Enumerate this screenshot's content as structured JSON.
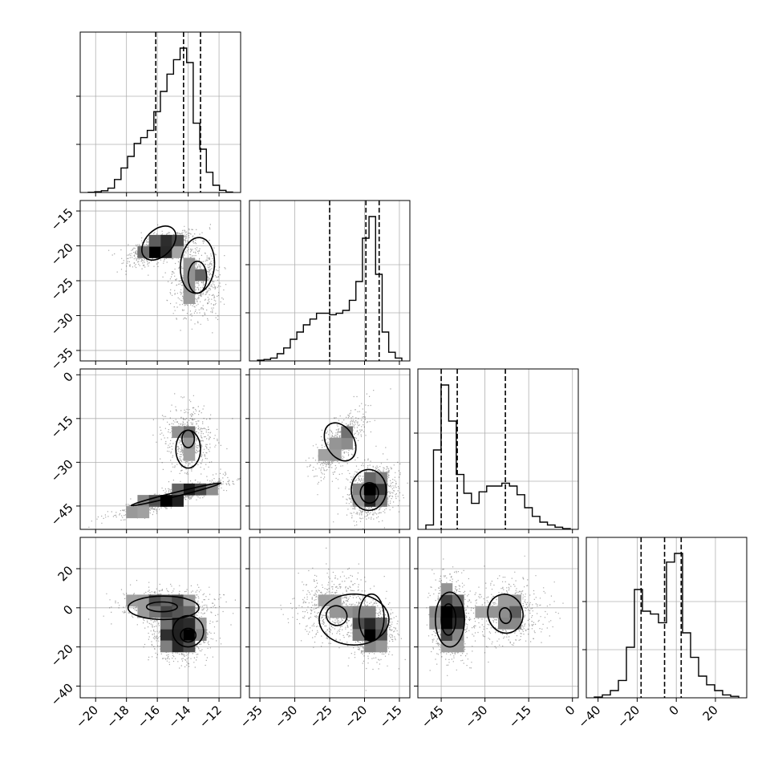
{
  "chart_data": {
    "type": "corner",
    "variables": [
      {
        "range": [
          -21,
          -10.6
        ],
        "ticks": [
          -20,
          -18,
          -16,
          -14,
          -12
        ],
        "tick_labels": [
          "−20",
          "−18",
          "−16",
          "−14",
          "−12"
        ]
      },
      {
        "range": [
          -36.5,
          -13.5
        ],
        "ticks": [
          -35,
          -30,
          -25,
          -20,
          -15
        ],
        "tick_labels": [
          "−35",
          "−30",
          "−25",
          "−20",
          "−15"
        ]
      },
      {
        "range": [
          -53,
          2
        ],
        "ticks": [
          -45,
          -30,
          -15,
          0
        ],
        "tick_labels": [
          "−45",
          "−30",
          "−15",
          "0"
        ]
      },
      {
        "range": [
          -46,
          36
        ],
        "ticks": [
          -40,
          -20,
          0,
          20
        ],
        "tick_labels": [
          "−40",
          "−20",
          "0",
          "20"
        ]
      }
    ],
    "y_tick_labels": {
      "1": [
        "−15",
        "−20",
        "−25",
        "−30",
        "−35"
      ],
      "2": [
        "0",
        "−15",
        "−30",
        "−45"
      ],
      "3": [
        "20",
        "0",
        "−20",
        "−40"
      ]
    },
    "x_tick_labels": [
      [
        "−20",
        "−18",
        "−16",
        "−14",
        "−12"
      ],
      [
        "−35",
        "−30",
        "−25",
        "−20",
        "−15"
      ],
      [
        "−45",
        "−30",
        "−15",
        "0"
      ],
      [
        "−40",
        "−20",
        "0",
        "20"
      ]
    ],
    "histograms": [
      {
        "counts": [
          0.002,
          0.005,
          0.012,
          0.03,
          0.09,
          0.17,
          0.25,
          0.34,
          0.38,
          0.43,
          0.56,
          0.7,
          0.82,
          0.92,
          1.0,
          0.9,
          0.48,
          0.3,
          0.14,
          0.05,
          0.015,
          0.003
        ],
        "quantiles": [
          -16.1,
          -14.3,
          -13.2
        ]
      },
      {
        "counts": [
          0.005,
          0.01,
          0.02,
          0.05,
          0.09,
          0.15,
          0.2,
          0.25,
          0.29,
          0.33,
          0.33,
          0.32,
          0.33,
          0.35,
          0.42,
          0.55,
          0.85,
          1.0,
          0.6,
          0.2,
          0.06,
          0.02
        ],
        "quantiles": [
          -25.0,
          -19.8,
          -17.9
        ]
      },
      {
        "counts": [
          0.03,
          0.55,
          1.0,
          0.75,
          0.38,
          0.25,
          0.18,
          0.26,
          0.3,
          0.3,
          0.32,
          0.3,
          0.24,
          0.15,
          0.09,
          0.05,
          0.03,
          0.015,
          0.005
        ],
        "quantiles": [
          -45.0,
          -39.5,
          -23.0
        ]
      },
      {
        "counts": [
          0.005,
          0.02,
          0.05,
          0.12,
          0.35,
          0.75,
          0.6,
          0.58,
          0.52,
          0.94,
          1.0,
          0.45,
          0.28,
          0.15,
          0.09,
          0.05,
          0.02,
          0.01
        ],
        "quantiles": [
          -18.0,
          -6.0,
          2.5
        ]
      }
    ],
    "pairs": {
      "1_0": {
        "clusters": [
          {
            "mx": -15.8,
            "my": -20.2,
            "sx": 0.8,
            "sy": 0.9,
            "rho": 0.6,
            "w": 0.55
          },
          {
            "mx": -13.5,
            "my": -25.0,
            "sx": 0.6,
            "sy": 2.0,
            "rho": 0.0,
            "w": 0.45
          }
        ],
        "contours": [
          {
            "cx": -15.9,
            "cy": -19.6,
            "rx": 1.3,
            "ry": 1.9,
            "rot": -45
          },
          {
            "cx": -13.4,
            "cy": -22.8,
            "rx": 1.1,
            "ry": 4.0,
            "rot": 5
          },
          {
            "cx": -13.4,
            "cy": -24.5,
            "rx": 0.6,
            "ry": 2.3,
            "rot": 0
          }
        ]
      },
      "2_0": {
        "clusters": [
          {
            "mx": -15.0,
            "my": -42.0,
            "sx": 1.4,
            "sy": 2.5,
            "rho": 0.9,
            "w": 0.62
          },
          {
            "mx": -14.0,
            "my": -22.0,
            "sx": 0.6,
            "sy": 4.5,
            "rho": 0.0,
            "w": 0.38
          }
        ],
        "contours": [
          {
            "cx": -14.8,
            "cy": -41.0,
            "rx": 3.0,
            "ry": 0.7,
            "rot": -14
          },
          {
            "cx": -14.0,
            "cy": -25.5,
            "rx": 0.8,
            "ry": 6.5,
            "rot": 0
          },
          {
            "cx": -14.0,
            "cy": -22.0,
            "rx": 0.4,
            "ry": 3.0,
            "rot": 0
          }
        ]
      },
      "2_1": {
        "clusters": [
          {
            "mx": -19.0,
            "my": -40.0,
            "sx": 1.3,
            "sy": 3.5,
            "rho": 0.2,
            "w": 0.62
          },
          {
            "mx": -23.5,
            "my": -23.0,
            "sx": 1.5,
            "sy": 4.5,
            "rho": 0.7,
            "w": 0.38
          }
        ],
        "contours": [
          {
            "cx": -19.4,
            "cy": -39.5,
            "rx": 2.5,
            "ry": 7.0,
            "rot": 0
          },
          {
            "cx": -23.5,
            "cy": -23.0,
            "rx": 2.0,
            "ry": 7.0,
            "rot": -30
          },
          {
            "cx": -19.3,
            "cy": -40.5,
            "rx": 1.3,
            "ry": 3.5,
            "rot": 0
          }
        ]
      },
      "3_0": {
        "clusters": [
          {
            "mx": -14.5,
            "my": -14.0,
            "sx": 0.7,
            "sy": 5.0,
            "rho": 0.0,
            "w": 0.55
          },
          {
            "mx": -15.5,
            "my": 1.0,
            "sx": 1.2,
            "sy": 3.5,
            "rho": 0.0,
            "w": 0.45
          }
        ],
        "contours": [
          {
            "cx": -15.6,
            "cy": 0.0,
            "rx": 2.3,
            "ry": 6.0,
            "rot": 0
          },
          {
            "cx": -14.0,
            "cy": -12.0,
            "rx": 1.0,
            "ry": 8.0,
            "rot": 0
          },
          {
            "cx": -15.7,
            "cy": 0.5,
            "rx": 1.0,
            "ry": 2.5,
            "rot": 0
          },
          {
            "cx": -14.0,
            "cy": -14.0,
            "rx": 0.5,
            "ry": 3.5,
            "rot": 0
          }
        ]
      },
      "3_1": {
        "clusters": [
          {
            "mx": -19.0,
            "my": -12.0,
            "sx": 1.2,
            "sy": 5.0,
            "rho": 0.0,
            "w": 0.5
          },
          {
            "mx": -24.0,
            "my": 0.0,
            "sx": 2.2,
            "sy": 6.5,
            "rho": 0.0,
            "w": 0.5
          }
        ],
        "contours": [
          {
            "cx": -21.5,
            "cy": -6.0,
            "rx": 5.0,
            "ry": 13.0,
            "rot": 0
          },
          {
            "cx": -19.0,
            "cy": -5.0,
            "rx": 1.8,
            "ry": 12.0,
            "rot": 0
          },
          {
            "cx": -24.0,
            "cy": -4.0,
            "rx": 1.5,
            "ry": 5.0,
            "rot": 20
          }
        ]
      },
      "3_2": {
        "clusters": [
          {
            "mx": -42.0,
            "my": -5.0,
            "sx": 2.5,
            "sy": 8.0,
            "rho": 0.0,
            "w": 0.6
          },
          {
            "mx": -22.0,
            "my": -2.0,
            "sx": 5.0,
            "sy": 6.0,
            "rho": 0.0,
            "w": 0.4
          }
        ],
        "contours": [
          {
            "cx": -42.0,
            "cy": -6.0,
            "rx": 5.0,
            "ry": 14.0,
            "rot": 0
          },
          {
            "cx": -23.0,
            "cy": -3.0,
            "rx": 6.0,
            "ry": 10.0,
            "rot": -15
          },
          {
            "cx": -42.5,
            "cy": -6.0,
            "rx": 2.5,
            "ry": 8.0,
            "rot": 0
          },
          {
            "cx": -23.0,
            "cy": -4.0,
            "rx": 2.0,
            "ry": 4.0,
            "rot": -10
          }
        ]
      }
    },
    "xlabel": "",
    "ylabel": "",
    "title": "",
    "grid": true
  }
}
